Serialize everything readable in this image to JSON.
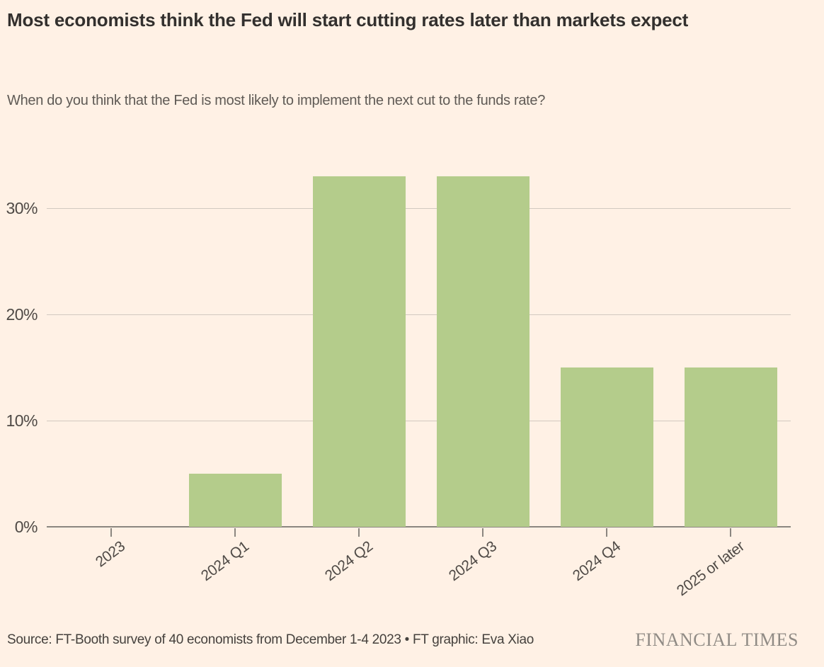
{
  "header": {
    "title": "Most economists think the Fed will start cutting rates later than markets expect",
    "subtitle": "When do you think that the Fed is most likely to implement the next cut to the funds rate?"
  },
  "chart_data": {
    "type": "bar",
    "title": "Most economists think the Fed will start cutting rates later than markets expect",
    "subtitle": "When do you think that the Fed is most likely to implement the next cut to the funds rate?",
    "categories": [
      "2023",
      "2024 Q1",
      "2024 Q2",
      "2024 Q3",
      "2024 Q4",
      "2025 or later"
    ],
    "values": [
      0,
      5,
      33,
      33,
      15,
      15
    ],
    "unit": "%",
    "xlabel": "",
    "ylabel": "",
    "ylim": [
      0,
      33
    ],
    "yticks": [
      0,
      10,
      20,
      30
    ],
    "ytick_labels": [
      "0%",
      "10%",
      "20%",
      "30%"
    ],
    "grid": true,
    "legend": "none",
    "bar_color": "#B4CC8B"
  },
  "colors": {
    "background": "#FFF1E5",
    "bar": "#B4CC8B",
    "gridline": "#D2C9C0",
    "axis": "#8B8680",
    "title_text": "#33302E",
    "subtitle_text": "#5F5A55",
    "brand_text": "#908B85"
  },
  "footer": {
    "source": "Source: FT-Booth survey of 40 economists from December 1-4 2023 • FT graphic: Eva Xiao",
    "brand": "FINANCIAL TIMES"
  }
}
